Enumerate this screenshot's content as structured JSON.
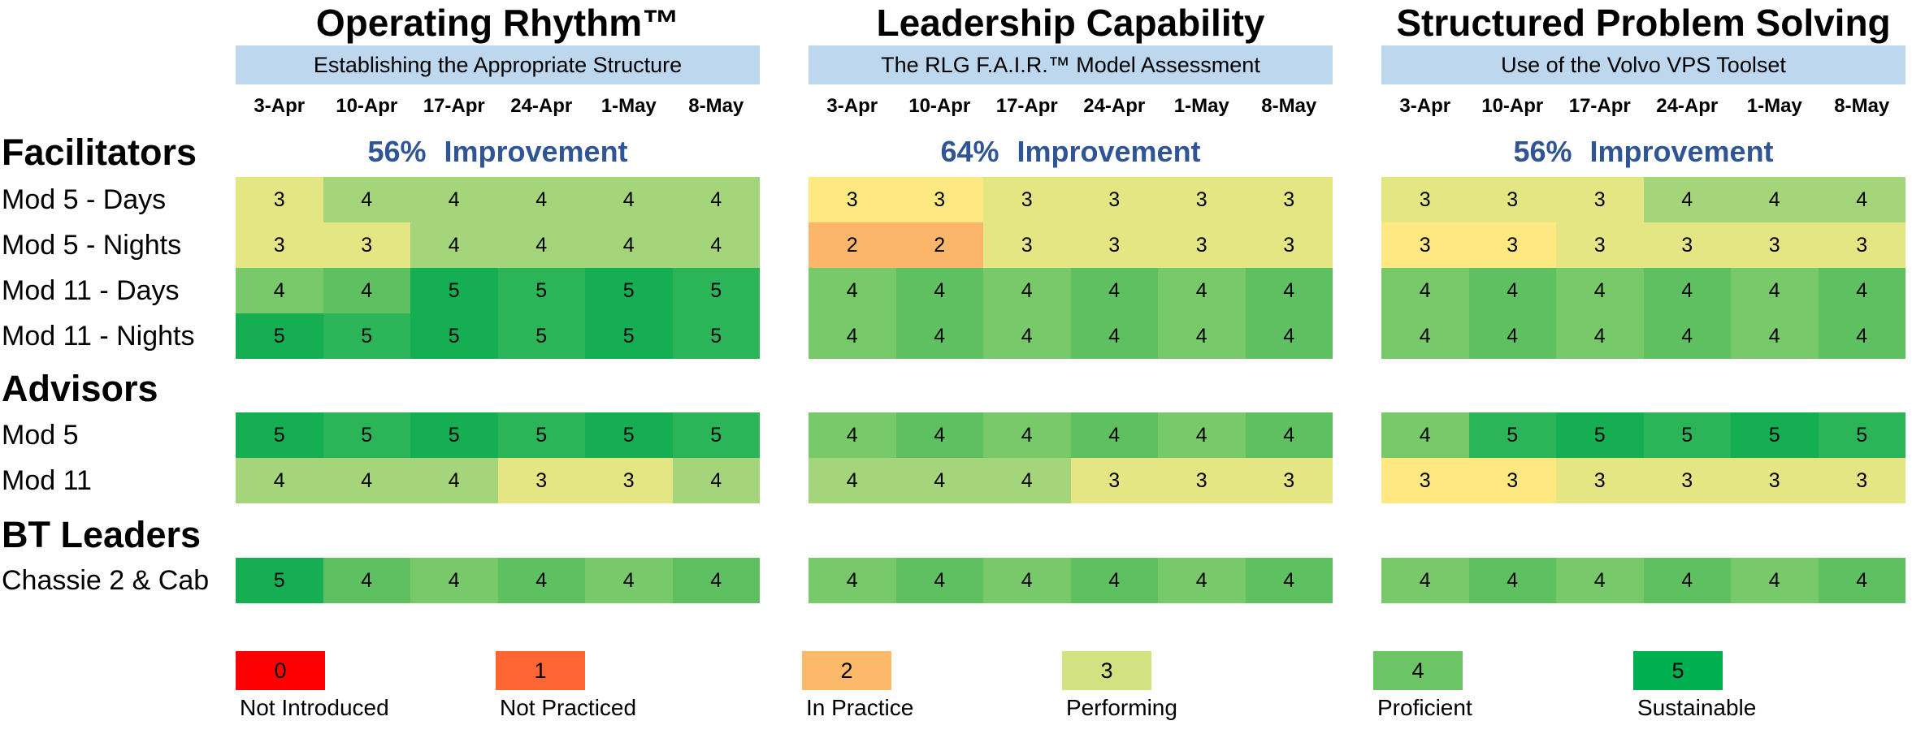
{
  "chart_data": {
    "type": "heatmap",
    "dates": [
      "3-Apr",
      "10-Apr",
      "17-Apr",
      "24-Apr",
      "1-May",
      "8-May"
    ],
    "panels": [
      {
        "title": "Operating Rhythm™",
        "subtitle": "Establishing the Appropriate Structure",
        "improvement": "56%  Improvement",
        "rows": {
          "Mod 5 - Days": [
            3,
            4,
            4,
            4,
            4,
            4
          ],
          "Mod 5 - Nights": [
            3,
            3,
            4,
            4,
            4,
            4
          ],
          "Mod 11 - Days": [
            4,
            4,
            5,
            5,
            5,
            5
          ],
          "Mod 11 - Nights": [
            5,
            5,
            5,
            5,
            5,
            5
          ],
          "Mod 5": [
            5,
            5,
            5,
            5,
            5,
            5
          ],
          "Mod 11": [
            4,
            4,
            4,
            3,
            3,
            4
          ],
          "Chassie 2 & Cab": [
            5,
            4,
            4,
            4,
            4,
            4
          ]
        }
      },
      {
        "title": "Leadership Capability",
        "subtitle": "The RLG F.A.I.R.™ Model Assessment",
        "improvement": "64%  Improvement",
        "rows": {
          "Mod 5 - Days": [
            3,
            3,
            3,
            3,
            3,
            3
          ],
          "Mod 5 - Nights": [
            2,
            2,
            3,
            3,
            3,
            3
          ],
          "Mod 11 - Days": [
            4,
            4,
            4,
            4,
            4,
            4
          ],
          "Mod 11 - Nights": [
            4,
            4,
            4,
            4,
            4,
            4
          ],
          "Mod 5": [
            4,
            4,
            4,
            4,
            4,
            4
          ],
          "Mod 11": [
            4,
            4,
            4,
            3,
            3,
            3
          ],
          "Chassie 2 & Cab": [
            4,
            4,
            4,
            4,
            4,
            4
          ]
        }
      },
      {
        "title": "Structured Problem Solving",
        "subtitle": "Use of the Volvo VPS Toolset",
        "improvement": "56%  Improvement",
        "rows": {
          "Mod 5 - Days": [
            3,
            3,
            3,
            4,
            4,
            4
          ],
          "Mod 5 - Nights": [
            3,
            3,
            3,
            3,
            3,
            3
          ],
          "Mod 11 - Days": [
            4,
            4,
            4,
            4,
            4,
            4
          ],
          "Mod 11 - Nights": [
            4,
            4,
            4,
            4,
            4,
            4
          ],
          "Mod 5": [
            4,
            5,
            5,
            5,
            5,
            5
          ],
          "Mod 11": [
            3,
            3,
            3,
            3,
            3,
            3
          ],
          "Chassie 2 & Cab": [
            4,
            4,
            4,
            4,
            4,
            4
          ]
        }
      }
    ],
    "groups": [
      {
        "label": "Facilitators",
        "rows": [
          "Mod 5 - Days",
          "Mod 5 - Nights",
          "Mod 11 - Days",
          "Mod 11 - Nights"
        ]
      },
      {
        "label": "Advisors",
        "rows": [
          "Mod 5",
          "Mod 11"
        ]
      },
      {
        "label": "BT Leaders",
        "rows": [
          "Chassie 2 & Cab"
        ]
      }
    ],
    "legend": [
      {
        "value": "0",
        "label": "Not Introduced",
        "color": "#ff0000"
      },
      {
        "value": "1",
        "label": "Not Practiced",
        "color": "#ff6633"
      },
      {
        "value": "2",
        "label": "In Practice",
        "color": "#fcb96a"
      },
      {
        "value": "3",
        "label": "Performing",
        "color": "#d2e281"
      },
      {
        "value": "4",
        "label": "Proficient",
        "color": "#6cc565"
      },
      {
        "value": "5",
        "label": "Sustainable",
        "color": "#00b050"
      }
    ],
    "cell_colors": {
      "2": "#fbb66b",
      "3-warm": "#fde881",
      "3-mid": "#e4e583",
      "3-cool": "#c6e080",
      "4-light": "#a4d57a",
      "4": "#78c96a",
      "4-dark": "#5fc062",
      "5": "#2cb458",
      "5-dark": "#15ae52"
    }
  }
}
